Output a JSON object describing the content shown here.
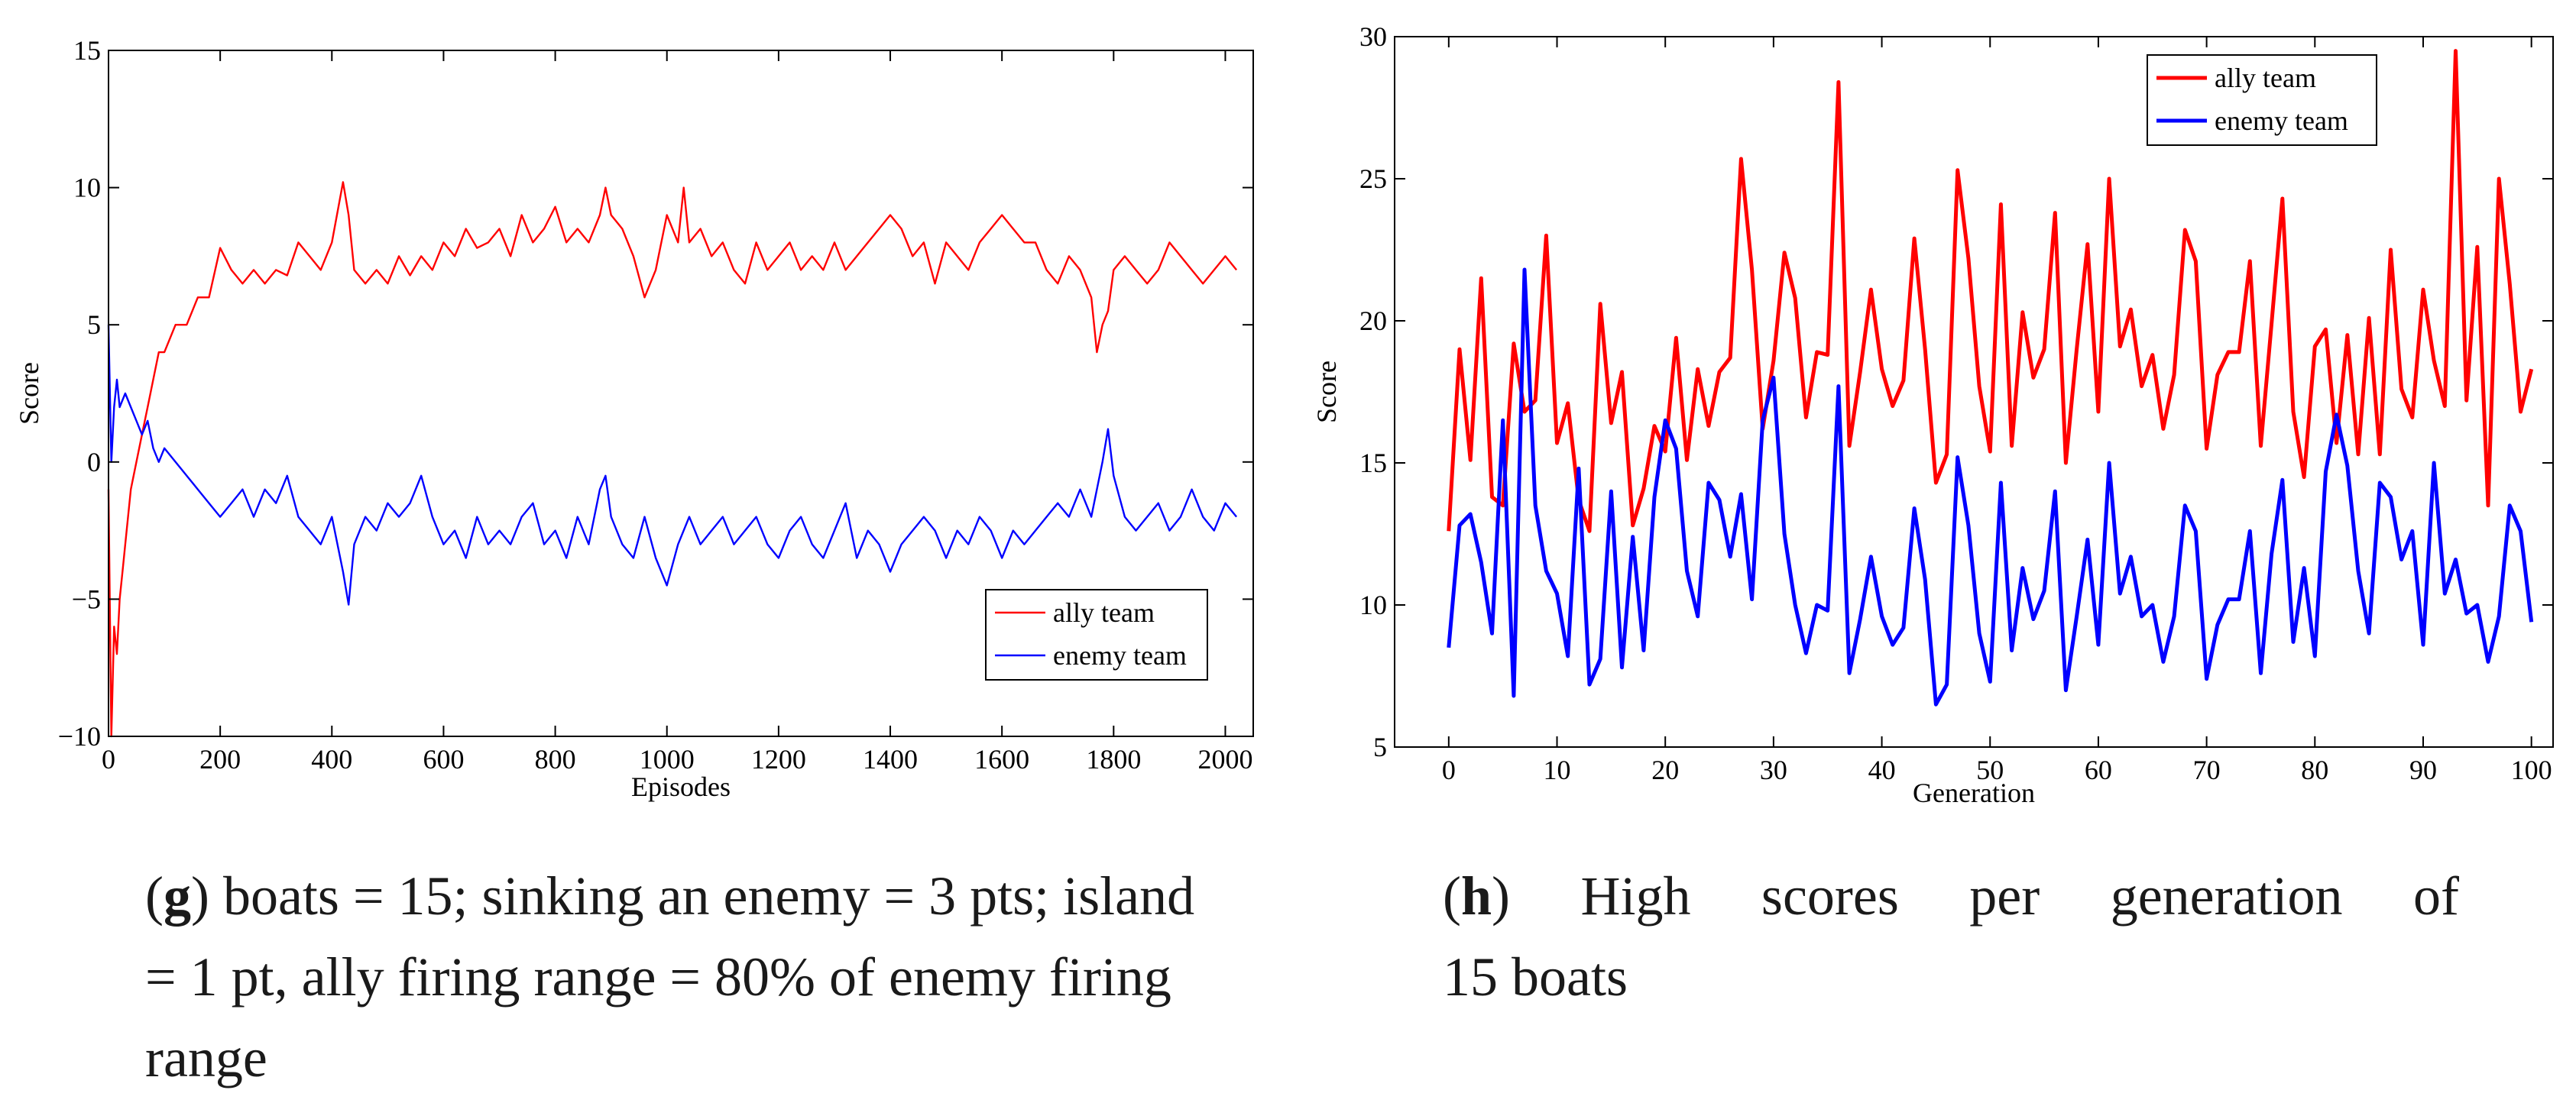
{
  "captions": {
    "g": {
      "letter": "g",
      "text": "boats = 15; sinking an enemy = 3 pts; island = 1 pt, ally firing range = 80% of enemy firing range"
    },
    "h": {
      "letter": "h",
      "line1": "High scores per generation of",
      "line2": "15 boats"
    }
  },
  "colors": {
    "ally": "#ff0000",
    "enemy": "#0000ff"
  },
  "chart_data": [
    {
      "id": "g",
      "type": "line",
      "title": "",
      "xlabel": "Episodes",
      "ylabel": "Score",
      "xlim": [
        0,
        2050
      ],
      "ylim": [
        -10,
        15
      ],
      "xticks": [
        0,
        200,
        400,
        600,
        800,
        1000,
        1200,
        1400,
        1600,
        1800,
        2000
      ],
      "yticks": [
        -10,
        -5,
        0,
        5,
        10,
        15
      ],
      "grid": false,
      "legend": "lower-right",
      "series": [
        {
          "name": "ally team",
          "color": "#ff0000",
          "x": [
            0,
            5,
            10,
            15,
            20,
            25,
            30,
            40,
            50,
            60,
            70,
            80,
            90,
            100,
            120,
            140,
            160,
            180,
            200,
            220,
            240,
            260,
            280,
            300,
            320,
            340,
            360,
            380,
            400,
            420,
            430,
            440,
            460,
            480,
            500,
            520,
            540,
            560,
            580,
            600,
            620,
            640,
            660,
            680,
            700,
            720,
            740,
            760,
            780,
            800,
            820,
            840,
            860,
            880,
            890,
            900,
            920,
            940,
            960,
            980,
            1000,
            1020,
            1030,
            1040,
            1060,
            1080,
            1100,
            1120,
            1140,
            1160,
            1180,
            1200,
            1220,
            1240,
            1260,
            1280,
            1300,
            1320,
            1340,
            1360,
            1380,
            1400,
            1420,
            1440,
            1460,
            1480,
            1500,
            1520,
            1540,
            1560,
            1580,
            1600,
            1620,
            1640,
            1660,
            1680,
            1700,
            1720,
            1740,
            1760,
            1770,
            1780,
            1790,
            1800,
            1820,
            1840,
            1860,
            1880,
            1900,
            1920,
            1940,
            1960,
            1980,
            2000,
            2020
          ],
          "y": [
            -1,
            -10,
            -6,
            -7,
            -5,
            -4,
            -3,
            -1,
            0,
            1,
            2,
            3,
            4,
            4,
            5,
            5,
            6,
            6,
            7.8,
            7,
            6.5,
            7,
            6.5,
            7,
            6.8,
            8,
            7.5,
            7,
            8,
            10.2,
            9,
            7,
            6.5,
            7,
            6.5,
            7.5,
            6.8,
            7.5,
            7,
            8,
            7.5,
            8.5,
            7.8,
            8,
            8.5,
            7.5,
            9,
            8,
            8.5,
            9.3,
            8,
            8.5,
            8,
            9,
            10,
            9,
            8.5,
            7.5,
            6,
            7,
            9,
            8,
            10,
            8,
            8.5,
            7.5,
            8,
            7,
            6.5,
            8,
            7,
            7.5,
            8,
            7,
            7.5,
            7,
            8,
            7,
            7.5,
            8,
            8.5,
            9,
            8.5,
            7.5,
            8,
            6.5,
            8,
            7.5,
            7,
            8,
            8.5,
            9,
            8.5,
            8,
            8,
            7,
            6.5,
            7.5,
            7,
            6,
            4,
            5,
            5.5,
            7,
            7.5,
            7,
            6.5,
            7,
            8,
            7.5,
            7,
            6.5,
            7,
            7.5,
            7
          ]
        },
        {
          "name": "enemy team",
          "color": "#0000ff",
          "x": [
            0,
            5,
            10,
            15,
            20,
            30,
            40,
            50,
            60,
            70,
            80,
            90,
            100,
            120,
            140,
            160,
            180,
            200,
            220,
            240,
            260,
            280,
            300,
            320,
            340,
            360,
            380,
            400,
            420,
            430,
            440,
            460,
            480,
            500,
            520,
            540,
            560,
            580,
            600,
            620,
            640,
            660,
            680,
            700,
            720,
            740,
            760,
            780,
            800,
            820,
            840,
            860,
            880,
            890,
            900,
            920,
            940,
            960,
            980,
            1000,
            1020,
            1040,
            1060,
            1080,
            1100,
            1120,
            1140,
            1160,
            1180,
            1200,
            1220,
            1240,
            1260,
            1280,
            1300,
            1320,
            1340,
            1360,
            1380,
            1400,
            1420,
            1440,
            1460,
            1480,
            1500,
            1520,
            1540,
            1560,
            1580,
            1600,
            1620,
            1640,
            1660,
            1680,
            1700,
            1720,
            1740,
            1760,
            1780,
            1790,
            1800,
            1820,
            1840,
            1860,
            1880,
            1900,
            1920,
            1940,
            1960,
            1980,
            2000,
            2020
          ],
          "y": [
            5,
            0,
            2,
            3,
            2,
            2.5,
            2,
            1.5,
            1,
            1.5,
            0.5,
            0,
            0.5,
            0,
            -0.5,
            -1,
            -1.5,
            -2,
            -1.5,
            -1,
            -2,
            -1,
            -1.5,
            -0.5,
            -2,
            -2.5,
            -3,
            -2,
            -4,
            -5.2,
            -3,
            -2,
            -2.5,
            -1.5,
            -2,
            -1.5,
            -0.5,
            -2,
            -3,
            -2.5,
            -3.5,
            -2,
            -3,
            -2.5,
            -3,
            -2,
            -1.5,
            -3,
            -2.5,
            -3.5,
            -2,
            -3,
            -1,
            -0.5,
            -2,
            -3,
            -3.5,
            -2,
            -3.5,
            -4.5,
            -3,
            -2,
            -3,
            -2.5,
            -2,
            -3,
            -2.5,
            -2,
            -3,
            -3.5,
            -2.5,
            -2,
            -3,
            -3.5,
            -2.5,
            -1.5,
            -3.5,
            -2.5,
            -3,
            -4,
            -3,
            -2.5,
            -2,
            -2.5,
            -3.5,
            -2.5,
            -3,
            -2,
            -2.5,
            -3.5,
            -2.5,
            -3,
            -2.5,
            -2,
            -1.5,
            -2,
            -1,
            -2,
            0,
            1.2,
            -0.5,
            -2,
            -2.5,
            -2,
            -1.5,
            -2.5,
            -2,
            -1,
            -2,
            -2.5,
            -1.5,
            -2
          ]
        }
      ]
    },
    {
      "id": "h",
      "type": "line",
      "title": "",
      "xlabel": "Generation",
      "ylabel": "Score",
      "xlim": [
        -5,
        102
      ],
      "ylim": [
        5,
        30
      ],
      "xticks": [
        0,
        10,
        20,
        30,
        40,
        50,
        60,
        70,
        80,
        90,
        100
      ],
      "yticks": [
        5,
        10,
        15,
        20,
        25,
        30
      ],
      "grid": false,
      "legend": "top-right",
      "series": [
        {
          "name": "ally team",
          "color": "#ff0000",
          "x": [
            0,
            1,
            2,
            3,
            4,
            5,
            6,
            7,
            8,
            9,
            10,
            11,
            12,
            13,
            14,
            15,
            16,
            17,
            18,
            19,
            20,
            21,
            22,
            23,
            24,
            25,
            26,
            27,
            28,
            29,
            30,
            31,
            32,
            33,
            34,
            35,
            36,
            37,
            38,
            39,
            40,
            41,
            42,
            43,
            44,
            45,
            46,
            47,
            48,
            49,
            50,
            51,
            52,
            53,
            54,
            55,
            56,
            57,
            58,
            59,
            60,
            61,
            62,
            63,
            64,
            65,
            66,
            67,
            68,
            69,
            70,
            71,
            72,
            73,
            74,
            75,
            76,
            77,
            78,
            79,
            80,
            81,
            82,
            83,
            84,
            85,
            86,
            87,
            88,
            89,
            90,
            91,
            92,
            93,
            94,
            95,
            96,
            97,
            98,
            99,
            100
          ],
          "y": [
            12.6,
            19,
            15.1,
            21.5,
            13.8,
            13.5,
            19.2,
            16.8,
            17.2,
            23,
            15.7,
            17.1,
            13.7,
            12.6,
            20.6,
            16.4,
            18.2,
            12.8,
            14.1,
            16.3,
            15.4,
            19.4,
            15.1,
            18.3,
            16.3,
            18.2,
            18.7,
            25.7,
            21.8,
            16.2,
            18.6,
            22.4,
            20.8,
            16.6,
            18.9,
            18.8,
            28.4,
            15.6,
            18.2,
            21.1,
            18.3,
            17,
            17.9,
            22.9,
            19,
            14.3,
            15.3,
            25.3,
            22.2,
            17.7,
            15.4,
            24.1,
            15.6,
            20.3,
            18,
            19,
            23.8,
            15,
            19,
            22.7,
            16.8,
            25,
            19.1,
            20.4,
            17.7,
            18.8,
            16.2,
            18.1,
            23.2,
            22.1,
            15.5,
            18.1,
            18.9,
            18.9,
            22.1,
            15.6,
            19.9,
            24.3,
            16.8,
            14.5,
            19.1,
            19.7,
            15.7,
            19.5,
            15.3,
            20.1,
            15.3,
            22.5,
            17.6,
            16.6,
            21.1,
            18.6,
            17,
            29.5,
            17.2,
            22.6,
            13.5,
            25,
            21.3,
            16.8,
            18.3
          ]
        },
        {
          "name": "enemy team",
          "color": "#0000ff",
          "x": [
            0,
            1,
            2,
            3,
            4,
            5,
            6,
            7,
            8,
            9,
            10,
            11,
            12,
            13,
            14,
            15,
            16,
            17,
            18,
            19,
            20,
            21,
            22,
            23,
            24,
            25,
            26,
            27,
            28,
            29,
            30,
            31,
            32,
            33,
            34,
            35,
            36,
            37,
            38,
            39,
            40,
            41,
            42,
            43,
            44,
            45,
            46,
            47,
            48,
            49,
            50,
            51,
            52,
            53,
            54,
            55,
            56,
            57,
            58,
            59,
            60,
            61,
            62,
            63,
            64,
            65,
            66,
            67,
            68,
            69,
            70,
            71,
            72,
            73,
            74,
            75,
            76,
            77,
            78,
            79,
            80,
            81,
            82,
            83,
            84,
            85,
            86,
            87,
            88,
            89,
            90,
            91,
            92,
            93,
            94,
            95,
            96,
            97,
            98,
            99,
            100
          ],
          "y": [
            8.5,
            12.8,
            13.2,
            11.5,
            9,
            16.5,
            6.8,
            21.8,
            13.5,
            11.2,
            10.4,
            8.2,
            14.8,
            7.2,
            8.1,
            14,
            7.8,
            12.4,
            8.4,
            13.8,
            16.5,
            15.5,
            11.2,
            9.6,
            14.3,
            13.7,
            11.7,
            13.9,
            10.2,
            16.5,
            18,
            12.5,
            10,
            8.3,
            10,
            9.8,
            17.7,
            7.6,
            9.5,
            11.7,
            9.6,
            8.6,
            9.2,
            13.4,
            10.9,
            6.5,
            7.2,
            15.2,
            12.8,
            9,
            7.3,
            14.3,
            8.4,
            11.3,
            9.5,
            10.5,
            14,
            7,
            9.6,
            12.3,
            8.6,
            15,
            10.4,
            11.7,
            9.6,
            10,
            8,
            9.6,
            13.5,
            12.6,
            7.4,
            9.3,
            10.2,
            10.2,
            12.6,
            7.6,
            11.8,
            14.4,
            8.7,
            11.3,
            8.2,
            14.7,
            16.7,
            14.9,
            11.2,
            9,
            14.3,
            13.8,
            11.6,
            12.6,
            8.6,
            15,
            10.4,
            11.6,
            9.7,
            10,
            8,
            9.6,
            13.5,
            12.6,
            9.4
          ]
        }
      ]
    }
  ]
}
